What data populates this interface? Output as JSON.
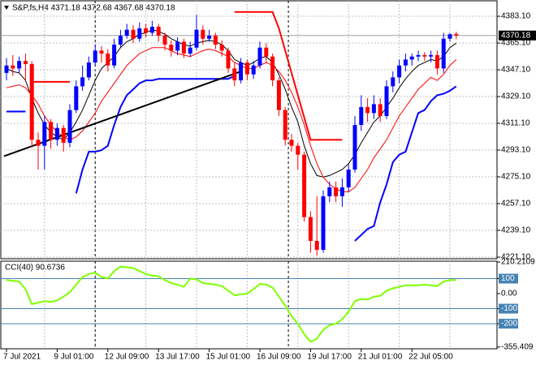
{
  "chart_data": [
    {
      "type": "candlestick",
      "title": "S&P,fs,H4  4371.18 4372.68 4367.68 4370.18",
      "categories": [
        "7 Jul 2021",
        null,
        null,
        null,
        null,
        null,
        null,
        null,
        "9 Jul 01:00",
        null,
        null,
        null,
        null,
        null,
        null,
        null,
        "12 Jul 09:00",
        null,
        null,
        null,
        null,
        null,
        null,
        null,
        "13 Jul 17:00",
        null,
        null,
        null,
        null,
        null,
        null,
        null,
        "15 Jul 01:00",
        null,
        null,
        null,
        null,
        null,
        null,
        null,
        "16 Jul 09:00",
        null,
        null,
        null,
        null,
        null,
        null,
        null,
        "19 Jul 17:00",
        null,
        null,
        null,
        null,
        null,
        null,
        null,
        "21 Jul 01:00",
        null,
        null,
        null,
        null,
        null,
        null,
        null,
        "22 Jul 05:00",
        null,
        null,
        null,
        null,
        null,
        null,
        null
      ],
      "open": [
        4345,
        4350,
        4348,
        4353,
        4351,
        4300,
        4296,
        4312,
        4300,
        4308,
        4298,
        4320,
        4336,
        4342,
        4352,
        4360,
        4358,
        4350,
        4364,
        4370,
        4374,
        4368,
        4375,
        4372,
        4376,
        4370,
        4364,
        4360,
        4366,
        4358,
        4362,
        4374,
        4368,
        4370,
        4364,
        4360,
        4348,
        4340,
        4352,
        4344,
        4350,
        4362,
        4356,
        4340,
        4320,
        4300,
        4296,
        4290,
        4248,
        4232,
        4226,
        4262,
        4268,
        4262,
        4268,
        4280,
        4310,
        4322,
        4318,
        4324,
        4316,
        4336,
        4342,
        4350,
        4354,
        4356,
        4357,
        4356,
        4357,
        4348,
        4368,
        4371.18
      ],
      "high": [
        4355,
        4357,
        4356,
        4358,
        4353,
        4305,
        4316,
        4314,
        4311,
        4310,
        4324,
        4340,
        4350,
        4356,
        4364,
        4363,
        4361,
        4368,
        4374,
        4378,
        4377,
        4379,
        4378,
        4380,
        4378,
        4372,
        4367,
        4369,
        4368,
        4366,
        4384,
        4377,
        4374,
        4372,
        4367,
        4362,
        4352,
        4355,
        4354,
        4353,
        4366,
        4365,
        4358,
        4342,
        4322,
        4304,
        4298,
        4292,
        4252,
        4262,
        4266,
        4272,
        4272,
        4274,
        4284,
        4316,
        4330,
        4328,
        4330,
        4328,
        4340,
        4346,
        4354,
        4358,
        4358,
        4360,
        4359,
        4360,
        4360,
        4372,
        4372,
        4372.68
      ],
      "low": [
        4340,
        4343,
        4345,
        4340,
        4295,
        4280,
        4280,
        4294,
        4296,
        4292,
        4295,
        4318,
        4333,
        4340,
        4350,
        4352,
        4346,
        4348,
        4362,
        4368,
        4365,
        4366,
        4369,
        4370,
        4366,
        4360,
        4356,
        4357,
        4355,
        4356,
        4360,
        4364,
        4366,
        4361,
        4356,
        4345,
        4336,
        4338,
        4340,
        4341,
        4348,
        4352,
        4336,
        4316,
        4296,
        4292,
        4280,
        4245,
        4224,
        4222,
        4224,
        4258,
        4258,
        4255,
        4265,
        4278,
        4306,
        4312,
        4314,
        4312,
        4314,
        4332,
        4338,
        4346,
        4350,
        4353,
        4353,
        4352,
        4344,
        4345,
        4366,
        4367.68
      ],
      "close": [
        4350,
        4348,
        4353,
        4351,
        4300,
        4296,
        4312,
        4300,
        4308,
        4298,
        4320,
        4336,
        4342,
        4352,
        4360,
        4358,
        4350,
        4364,
        4370,
        4374,
        4368,
        4375,
        4372,
        4376,
        4370,
        4364,
        4360,
        4366,
        4358,
        4362,
        4374,
        4368,
        4370,
        4364,
        4360,
        4348,
        4340,
        4352,
        4344,
        4350,
        4362,
        4356,
        4340,
        4320,
        4300,
        4296,
        4290,
        4248,
        4232,
        4226,
        4262,
        4268,
        4262,
        4268,
        4280,
        4310,
        4322,
        4318,
        4324,
        4316,
        4336,
        4342,
        4350,
        4354,
        4356,
        4357,
        4356,
        4357,
        4348,
        4368,
        4371,
        4370.18
      ],
      "up_color": "#0000ff",
      "down_color": "#ff0000",
      "series": [
        {
          "color": "#000000",
          "values": [
            4348,
            4346,
            4345,
            4340,
            4328,
            4318,
            4310,
            4305,
            4302,
            4300,
            4305,
            4312,
            4320,
            4330,
            4340,
            4348,
            4352,
            4356,
            4362,
            4366,
            4368,
            4371,
            4372,
            4374,
            4373,
            4371,
            4368,
            4366,
            4364,
            4363,
            4365,
            4366,
            4367,
            4366,
            4364,
            4360,
            4354,
            4352,
            4350,
            4352,
            4355,
            4356,
            4352,
            4344,
            4334,
            4322,
            4312,
            4296,
            4284,
            4276,
            4275,
            4276,
            4278,
            4280,
            4284,
            4290,
            4298,
            4305,
            4312,
            4316,
            4322,
            4328,
            4335,
            4341,
            4346,
            4350,
            4352,
            4354,
            4353,
            4356,
            4362,
            4365
          ]
        },
        {
          "color": "#ff0000",
          "values": [
            4335,
            4336,
            4337,
            4335,
            4330,
            4324,
            4316,
            4310,
            4305,
            4302,
            4300,
            4302,
            4306,
            4312,
            4318,
            4326,
            4332,
            4338,
            4344,
            4350,
            4354,
            4358,
            4360,
            4362,
            4362,
            4362,
            4360,
            4358,
            4357,
            4356,
            4358,
            4360,
            4361,
            4360,
            4358,
            4356,
            4352,
            4350,
            4348,
            4348,
            4350,
            4352,
            4350,
            4346,
            4340,
            4332,
            4322,
            4310,
            4296,
            4284,
            4275,
            4270,
            4267,
            4265,
            4265,
            4268,
            4274,
            4280,
            4288,
            4294,
            4300,
            4308,
            4316,
            4322,
            4328,
            4334,
            4338,
            4342,
            4340,
            4344,
            4350,
            4354
          ]
        },
        {
          "color": "#0000ff",
          "values": [
            4319,
            4319,
            4319,
            4319,
            null,
            null,
            null,
            null,
            null,
            null,
            null,
            4264,
            4280,
            4292,
            4292,
            4293,
            4296,
            4310,
            4322,
            4330,
            4334,
            4338,
            4340,
            4340,
            4341,
            4341,
            4341,
            4341,
            4341,
            4341,
            4341,
            4341,
            4341,
            4341,
            4341,
            4341,
            4343,
            null,
            null,
            null,
            null,
            null,
            null,
            null,
            null,
            null,
            null,
            null,
            null,
            null,
            null,
            null,
            null,
            null,
            null,
            4232,
            4236,
            4240,
            4242,
            4258,
            4270,
            4285,
            4290,
            4292,
            4305,
            4318,
            4320,
            4326,
            4330,
            4331,
            4333,
            4336
          ]
        },
        {
          "color": "#ff0000",
          "values": [
            null,
            null,
            null,
            null,
            4339,
            4339,
            4339,
            4339,
            4339,
            4339,
            4339,
            null,
            null,
            null,
            null,
            null,
            null,
            null,
            null,
            null,
            null,
            null,
            null,
            null,
            null,
            null,
            null,
            null,
            null,
            null,
            null,
            null,
            null,
            null,
            null,
            null,
            4386,
            4386,
            4386,
            4386,
            4386,
            4386,
            4386,
            4375,
            4360,
            4345,
            4330,
            4315,
            4300,
            4300,
            4300,
            4300,
            4300,
            4300,
            null,
            null,
            null,
            null,
            null,
            null,
            null,
            null,
            null,
            null,
            null,
            null,
            null,
            null,
            null,
            null,
            null,
            null
          ]
        }
      ],
      "trendline": {
        "color": "#000000",
        "x": [
          -0.4,
          37
        ],
        "values": [
          4289,
          4346
        ]
      },
      "last_price": 4370.18,
      "ylim": [
        4220,
        4393.5
      ],
      "yticks": [
        {
          "value": 4383.1,
          "label": "4383.10"
        },
        {
          "value": 4365.1,
          "label": "4365.10"
        },
        {
          "value": 4347.1,
          "label": "4347.10"
        },
        {
          "value": 4329.1,
          "label": "4329.10"
        },
        {
          "value": 4311.1,
          "label": "4311.10"
        },
        {
          "value": 4293.1,
          "label": "4293.10"
        },
        {
          "value": 4275.1,
          "label": "4275.10"
        },
        {
          "value": 4257.1,
          "label": "4257.10"
        },
        {
          "value": 4239.1,
          "label": "4239.10"
        },
        {
          "value": 4221.1,
          "label": "4221.10"
        }
      ],
      "grid": true
    },
    {
      "type": "line",
      "title": "CCI(40) 90.6736",
      "color": "#7fff00",
      "values": [
        90,
        85,
        80,
        30,
        -70,
        -60,
        -50,
        -55,
        -45,
        -20,
        10,
        60,
        110,
        130,
        140,
        110,
        100,
        150,
        180,
        175,
        170,
        150,
        130,
        120,
        115,
        90,
        70,
        60,
        45,
        100,
        95,
        70,
        65,
        60,
        50,
        20,
        -10,
        -5,
        0,
        30,
        65,
        60,
        40,
        -20,
        -80,
        -150,
        -200,
        -270,
        -320,
        -300,
        -240,
        -210,
        -200,
        -170,
        -120,
        -50,
        -35,
        -40,
        -20,
        -15,
        20,
        35,
        45,
        55,
        55,
        55,
        60,
        55,
        50,
        80,
        90,
        90.6736
      ],
      "levels": [
        100,
        -100,
        -200
      ],
      "level_color": "#4682b4",
      "ylim": [
        -367,
        216
      ],
      "yticks": [
        210.2109,
        100,
        {
          "value": 0,
          "label": "0.00"
        },
        -100,
        -200,
        -355.409
      ]
    }
  ]
}
